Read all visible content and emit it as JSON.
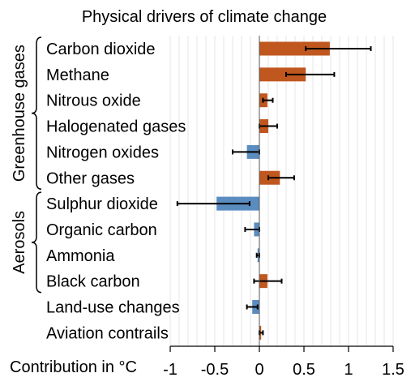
{
  "chart_data": {
    "type": "bar",
    "orientation": "horizontal",
    "title": "Physical drivers of climate change",
    "xlabel": "Contribution in °C",
    "xlim": [
      -1,
      1.5
    ],
    "xticks": [
      "-1",
      "-0.5",
      "0",
      "0.5",
      "1",
      "1.5"
    ],
    "grid": "vertical-minor",
    "colors": {
      "positive": "#c0571f",
      "negative": "#5a8cc0",
      "error_bar": "#000000"
    },
    "groups": [
      {
        "label": "Greenhouse gases",
        "members": [
          "Carbon dioxide",
          "Methane",
          "Nitrous oxide",
          "Halogenated gases",
          "Nitrogen oxides",
          "Other gases"
        ]
      },
      {
        "label": "Aerosols",
        "members": [
          "Sulphur dioxide",
          "Organic carbon",
          "Ammonia",
          "Black carbon"
        ]
      }
    ],
    "categories": [
      "Carbon dioxide",
      "Methane",
      "Nitrous oxide",
      "Halogenated gases",
      "Nitrogen oxides",
      "Other gases",
      "Sulphur dioxide",
      "Organic carbon",
      "Ammonia",
      "Black carbon",
      "Land-use changes",
      "Aviation contrails"
    ],
    "values": [
      0.79,
      0.52,
      0.09,
      0.1,
      -0.14,
      0.23,
      -0.48,
      -0.06,
      -0.02,
      0.09,
      -0.08,
      0.02
    ],
    "error_low": [
      0.52,
      0.3,
      0.04,
      0.0,
      -0.3,
      0.1,
      -0.92,
      -0.16,
      -0.03,
      -0.06,
      -0.14,
      0.0
    ],
    "error_high": [
      1.25,
      0.84,
      0.15,
      0.2,
      0.0,
      0.39,
      -0.11,
      0.0,
      0.0,
      0.25,
      -0.02,
      0.04
    ]
  }
}
